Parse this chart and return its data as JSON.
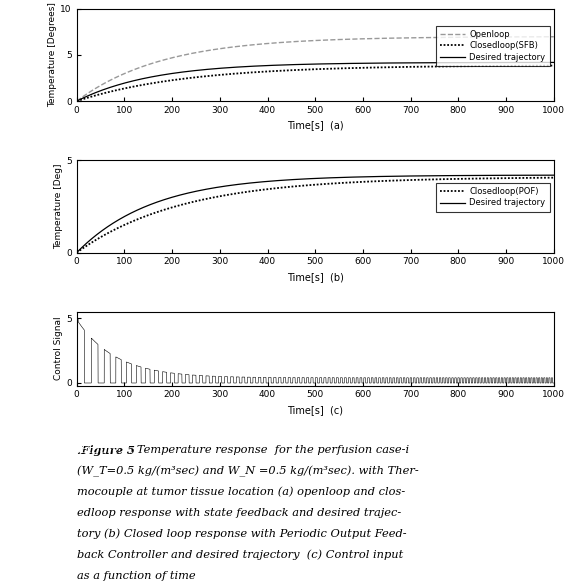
{
  "title_a_xlabel": "Time[s]  (a)",
  "title_b_xlabel": "Time[s]  (b)",
  "title_c_xlabel": "Time[s]  (c)",
  "ylabel_a": "Temperature [Degrees]",
  "ylabel_b": "Temperature [Deg]",
  "ylabel_c": "Control Signal",
  "xlim": [
    0,
    1000
  ],
  "ylim_a": [
    0,
    10
  ],
  "ylim_b": [
    0,
    5
  ],
  "ylim_c": [
    0,
    5
  ],
  "yticks_a": [
    0,
    5,
    10
  ],
  "yticks_b": [
    0,
    5
  ],
  "yticks_c": [
    0,
    5
  ],
  "xticks": [
    0,
    100,
    200,
    300,
    400,
    500,
    600,
    700,
    800,
    900,
    1000
  ],
  "legend_a": [
    "Openloop",
    "Closedloop(SFB)",
    "Desired trajectory"
  ],
  "legend_b": [
    "Closedloop(POF)",
    "Desired trajectory"
  ],
  "openloop_tau": 180,
  "openloop_amp": 7.0,
  "desired_tau": 160,
  "desired_amp": 4.2,
  "sfb_tau": 230,
  "sfb_amp": 3.9,
  "pof_tau": 220,
  "pof_amp": 4.1,
  "bg_color": "#ffffff",
  "gray_color": "#999999",
  "black_color": "#000000",
  "caption_bold": ".Figure 5",
  "caption_rest_line1": ".  Temperature response  for the perfusion case-i",
  "caption_line2": "(W_T=0.5 kg/(m³sec) and W_N =0.5 kg/(m³sec). with Ther-",
  "caption_line3": "mocouple at tumor tissue location (a) openloop and clos-",
  "caption_line4": "edloop response with state feedback and desired trajec-",
  "caption_line5": "tory (b) Closed loop response with Periodic Output Feed-",
  "caption_line6": "back Controller and desired trajectory  (c) Control input",
  "caption_line7": "as a function of time"
}
